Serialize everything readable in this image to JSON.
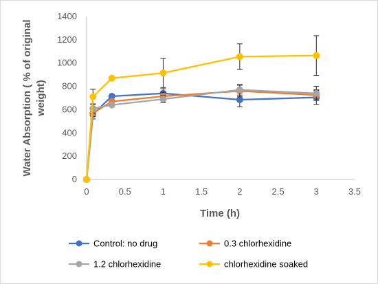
{
  "chart_data": {
    "type": "line",
    "xlabel": "Time (h)",
    "ylabel_lines": [
      "Water Absorption ( % of original",
      "weight)"
    ],
    "xlim": [
      0,
      3.5
    ],
    "ylim": [
      0,
      1400
    ],
    "x_ticks": [
      "0",
      "0.5",
      "1",
      "1.5",
      "2",
      "2.5",
      "3",
      "3.5"
    ],
    "y_ticks": [
      "0",
      "200",
      "400",
      "600",
      "800",
      "1000",
      "1200",
      "1400"
    ],
    "x_tick_values": [
      0,
      0.5,
      1,
      1.5,
      2,
      2.5,
      3,
      3.5
    ],
    "y_tick_values": [
      0,
      200,
      400,
      600,
      800,
      1000,
      1200,
      1400
    ],
    "grid": false,
    "legend_position": "bottom",
    "series": [
      {
        "name": "Control: no drug",
        "color": "#4472C4",
        "x": [
          0,
          0.083,
          0.33,
          1,
          2,
          3
        ],
        "y": [
          0,
          560,
          715,
          740,
          685,
          705
        ],
        "err": [
          0,
          40,
          0,
          40,
          60,
          60
        ]
      },
      {
        "name": "0.3 chlorhexidine",
        "color": "#ED7D31",
        "x": [
          0,
          0.083,
          0.33,
          1,
          2,
          3
        ],
        "y": [
          0,
          570,
          670,
          715,
          760,
          725
        ],
        "err": [
          0,
          30,
          0,
          35,
          50,
          45
        ]
      },
      {
        "name": "1.2 chlorhexidine",
        "color": "#A5A5A5",
        "x": [
          0,
          0.083,
          0.33,
          1,
          2,
          3
        ],
        "y": [
          0,
          610,
          640,
          690,
          770,
          740
        ],
        "err": [
          0,
          40,
          0,
          30,
          45,
          60
        ]
      },
      {
        "name": "chlorhexidine soaked",
        "color": "#FFC000",
        "x": [
          0,
          0.083,
          0.33,
          1,
          2,
          3
        ],
        "y": [
          0,
          710,
          870,
          915,
          1055,
          1065
        ],
        "err": [
          0,
          65,
          0,
          125,
          110,
          170
        ]
      }
    ]
  }
}
